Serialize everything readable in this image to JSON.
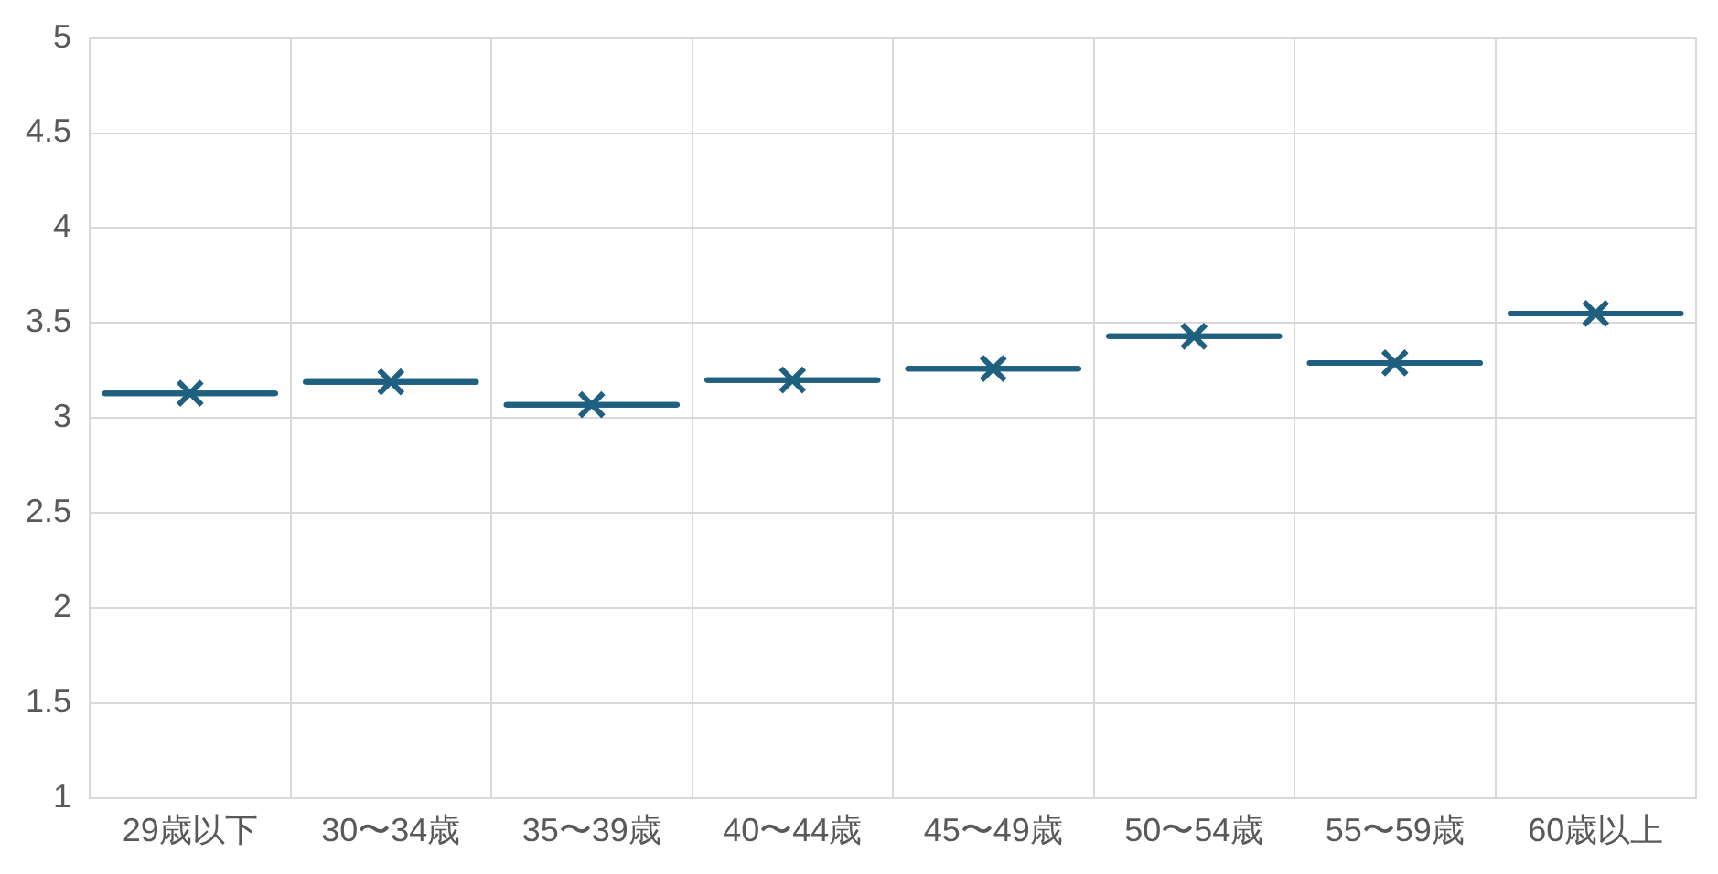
{
  "chart_data": {
    "type": "box",
    "categories": [
      "29歳以下",
      "30〜34歳",
      "35〜39歳",
      "40〜44歳",
      "45〜49歳",
      "50〜54歳",
      "55〜59歳",
      "60歳以上"
    ],
    "color": "#1f5f7f",
    "marker": "cross",
    "boxes": [
      {
        "low": 3.13,
        "q1": 3.13,
        "median": 3.13,
        "q3": 3.13,
        "high": 3.13,
        "mean": 3.13
      },
      {
        "low": 3.19,
        "q1": 3.19,
        "median": 3.19,
        "q3": 3.19,
        "high": 3.19,
        "mean": 3.19
      },
      {
        "low": 3.07,
        "q1": 3.07,
        "median": 3.07,
        "q3": 3.07,
        "high": 3.07,
        "mean": 3.07
      },
      {
        "low": 3.2,
        "q1": 3.2,
        "median": 3.2,
        "q3": 3.2,
        "high": 3.2,
        "mean": 3.2
      },
      {
        "low": 3.26,
        "q1": 3.26,
        "median": 3.26,
        "q3": 3.26,
        "high": 3.26,
        "mean": 3.26
      },
      {
        "low": 3.43,
        "q1": 3.43,
        "median": 3.43,
        "q3": 3.43,
        "high": 3.43,
        "mean": 3.43
      },
      {
        "low": 3.29,
        "q1": 3.29,
        "median": 3.29,
        "q3": 3.29,
        "high": 3.29,
        "mean": 3.29
      },
      {
        "low": 3.55,
        "q1": 3.55,
        "median": 3.55,
        "q3": 3.55,
        "high": 3.55,
        "mean": 3.55
      }
    ],
    "ylim": [
      1,
      5
    ],
    "yticks": [
      1,
      1.5,
      2,
      2.5,
      3,
      3.5,
      4,
      4.5,
      5
    ],
    "grid": true,
    "legend": false
  }
}
